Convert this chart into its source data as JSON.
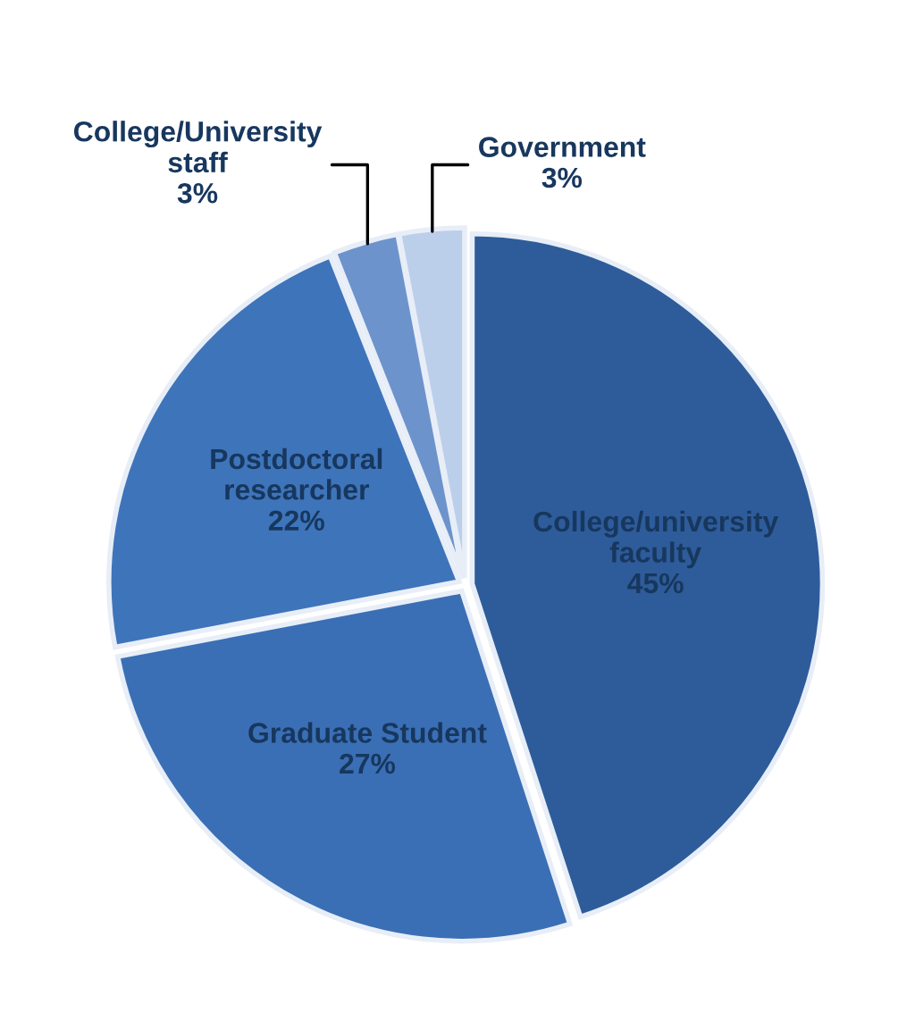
{
  "chart_data": {
    "type": "pie",
    "categories": [
      "College/university\nfaculty",
      "Graduate Student",
      "Postdoctoral\nresearcher",
      "College/University\nstaff",
      "Government"
    ],
    "values": [
      45,
      27,
      22,
      3,
      3
    ],
    "value_labels": [
      "45%",
      "27%",
      "22%",
      "3%",
      "3%"
    ],
    "colors": [
      "#2e5c9a",
      "#3a6fb5",
      "#3e74ba",
      "#6d93cc",
      "#bccfea"
    ]
  }
}
